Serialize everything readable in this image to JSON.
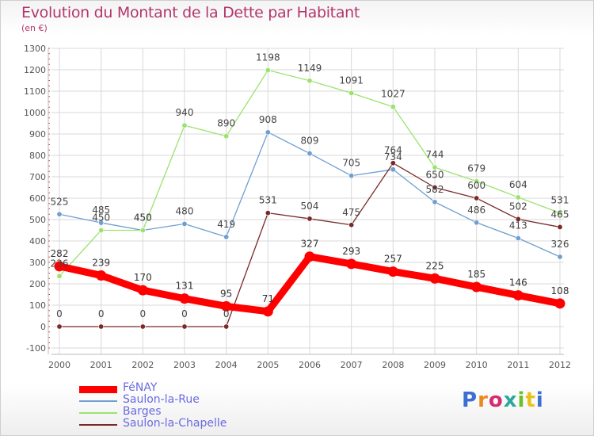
{
  "title": "Evolution du Montant de la Dette par Habitant",
  "subtitle": "(en €)",
  "brand": "Proxiti",
  "chart_data": {
    "type": "line",
    "title": "Evolution du Montant de la Dette par Habitant",
    "ylabel": "(en €)",
    "xlabel": "",
    "x": [
      "2000",
      "2001",
      "2002",
      "2003",
      "2004",
      "2005",
      "2006",
      "2007",
      "2008",
      "2009",
      "2010",
      "2011",
      "2012"
    ],
    "ylim": [
      -100,
      1300
    ],
    "yticks": [
      -100,
      0,
      100,
      200,
      300,
      400,
      500,
      600,
      700,
      800,
      900,
      1000,
      1100,
      1200,
      1300
    ],
    "grid": true,
    "legend_position": "bottom-left",
    "series": [
      {
        "name": "FéNAY",
        "color": "#ff0000",
        "values": [
          282,
          239,
          170,
          131,
          95,
          71,
          327,
          293,
          257,
          225,
          185,
          146,
          108
        ]
      },
      {
        "name": "Saulon-la-Rue",
        "color": "#6f9fd0",
        "values": [
          525,
          485,
          450,
          480,
          419,
          908,
          809,
          705,
          734,
          582,
          486,
          413,
          326
        ]
      },
      {
        "name": "Barges",
        "color": "#9be26f",
        "values": [
          236,
          450,
          450,
          940,
          890,
          1198,
          1149,
          1091,
          1027,
          744,
          679,
          604,
          531
        ]
      },
      {
        "name": "Saulon-la-Chapelle",
        "color": "#7a2a2a",
        "values": [
          0,
          0,
          0,
          0,
          0,
          531,
          504,
          475,
          764,
          650,
          600,
          502,
          465
        ]
      }
    ]
  }
}
